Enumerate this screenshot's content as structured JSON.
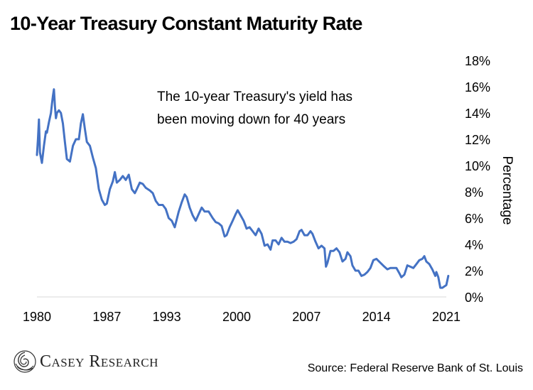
{
  "page": {
    "title": "10-Year Treasury Constant Maturity Rate",
    "source": "Source: Federal Reserve Bank of St. Louis",
    "logo_text": "Casey Research",
    "logo_icon": "casey-swirl-icon"
  },
  "colors": {
    "line": "#4472C4",
    "axis": "#d9d9d9",
    "text": "#000000"
  },
  "chart_data": {
    "type": "line",
    "title": "10-Year Treasury Constant Maturity Rate",
    "ylabel": "Percentage",
    "xlabel": "",
    "annotation": [
      "The 10-year Treasury's yield has",
      "been moving down for 40 years"
    ],
    "xlim": [
      1980,
      2021
    ],
    "ylim": [
      0,
      18
    ],
    "x_ticks": [
      1980,
      1987,
      1993,
      2000,
      2007,
      2014,
      2021
    ],
    "x_tick_labels": [
      "1980",
      "1987",
      "1993",
      "2000",
      "2007",
      "2014",
      "2021"
    ],
    "y_ticks": [
      0,
      2,
      4,
      6,
      8,
      10,
      12,
      14,
      16,
      18
    ],
    "y_tick_labels": [
      "0%",
      "2%",
      "4%",
      "6%",
      "8%",
      "10%",
      "12%",
      "14%",
      "16%",
      "18%"
    ],
    "y_axis_position": "right",
    "grid": false,
    "legend": "none",
    "series": [
      {
        "x": [
          1980.0,
          1980.1,
          1980.2,
          1980.3,
          1980.5,
          1980.7,
          1980.9,
          1981.0,
          1981.2,
          1981.4,
          1981.5,
          1981.6,
          1981.7,
          1981.8,
          1981.9,
          1982.0,
          1982.2,
          1982.4,
          1982.6,
          1982.8,
          1983.0,
          1983.3,
          1983.6,
          1983.9,
          1984.2,
          1984.4,
          1984.6,
          1984.8,
          1985.0,
          1985.3,
          1985.6,
          1985.9,
          1986.2,
          1986.5,
          1986.8,
          1987.0,
          1987.3,
          1987.6,
          1987.8,
          1988.0,
          1988.3,
          1988.6,
          1988.9,
          1989.2,
          1989.5,
          1989.8,
          1990.0,
          1990.3,
          1990.6,
          1990.9,
          1991.3,
          1991.6,
          1991.9,
          1992.2,
          1992.6,
          1992.9,
          1993.2,
          1993.5,
          1993.8,
          1994.2,
          1994.5,
          1994.8,
          1995.0,
          1995.3,
          1995.6,
          1995.9,
          1996.2,
          1996.5,
          1996.8,
          1997.2,
          1997.6,
          1997.9,
          1998.2,
          1998.5,
          1998.8,
          1999.0,
          1999.3,
          1999.6,
          1999.9,
          2000.1,
          2000.4,
          2000.7,
          2001.0,
          2001.3,
          2001.6,
          2001.9,
          2002.2,
          2002.5,
          2002.8,
          2003.1,
          2003.4,
          2003.6,
          2003.9,
          2004.2,
          2004.5,
          2004.8,
          2005.1,
          2005.4,
          2005.7,
          2006.0,
          2006.3,
          2006.5,
          2006.8,
          2007.1,
          2007.4,
          2007.6,
          2007.9,
          2008.2,
          2008.5,
          2008.8,
          2008.95,
          2009.1,
          2009.4,
          2009.7,
          2010.0,
          2010.3,
          2010.6,
          2010.9,
          2011.1,
          2011.4,
          2011.6,
          2011.9,
          2012.2,
          2012.5,
          2012.8,
          2013.1,
          2013.4,
          2013.7,
          2014.0,
          2014.4,
          2014.8,
          2015.1,
          2015.4,
          2015.7,
          2016.0,
          2016.3,
          2016.5,
          2016.8,
          2017.1,
          2017.4,
          2017.7,
          2018.0,
          2018.3,
          2018.6,
          2018.8,
          2019.0,
          2019.3,
          2019.6,
          2019.9,
          2020.0,
          2020.2,
          2020.4,
          2020.6,
          2020.8,
          2021.0,
          2021.2
        ],
        "values": [
          10.8,
          12.0,
          13.5,
          11.0,
          10.2,
          11.5,
          12.6,
          12.5,
          13.3,
          14.0,
          14.7,
          15.3,
          15.8,
          14.5,
          13.6,
          14.0,
          14.2,
          14.0,
          13.2,
          11.8,
          10.5,
          10.3,
          11.5,
          12.0,
          12.0,
          13.2,
          13.9,
          12.8,
          11.8,
          11.5,
          10.6,
          9.8,
          8.2,
          7.4,
          7.0,
          7.1,
          8.2,
          8.8,
          9.5,
          8.7,
          8.9,
          9.2,
          8.9,
          9.3,
          8.2,
          7.9,
          8.2,
          8.7,
          8.6,
          8.3,
          8.1,
          7.9,
          7.3,
          7.0,
          7.0,
          6.7,
          6.0,
          5.8,
          5.3,
          6.5,
          7.2,
          7.8,
          7.6,
          6.8,
          6.2,
          5.8,
          6.3,
          6.8,
          6.5,
          6.5,
          6.0,
          5.7,
          5.6,
          5.4,
          4.6,
          4.7,
          5.3,
          5.8,
          6.3,
          6.6,
          6.2,
          5.8,
          5.2,
          5.3,
          5.0,
          4.7,
          5.2,
          4.8,
          3.9,
          4.0,
          3.6,
          4.3,
          4.3,
          4.0,
          4.5,
          4.2,
          4.2,
          4.1,
          4.2,
          4.4,
          5.0,
          5.1,
          4.7,
          4.7,
          5.0,
          4.8,
          4.2,
          3.7,
          3.9,
          3.7,
          2.3,
          2.6,
          3.5,
          3.5,
          3.7,
          3.4,
          2.7,
          2.9,
          3.4,
          3.1,
          2.4,
          2.0,
          2.0,
          1.6,
          1.7,
          1.9,
          2.2,
          2.8,
          2.9,
          2.6,
          2.3,
          2.1,
          2.2,
          2.2,
          2.2,
          1.8,
          1.5,
          1.7,
          2.4,
          2.3,
          2.2,
          2.5,
          2.8,
          2.9,
          3.1,
          2.7,
          2.5,
          2.1,
          1.6,
          1.9,
          1.5,
          0.7,
          0.7,
          0.8,
          0.9,
          1.6
        ]
      }
    ]
  }
}
